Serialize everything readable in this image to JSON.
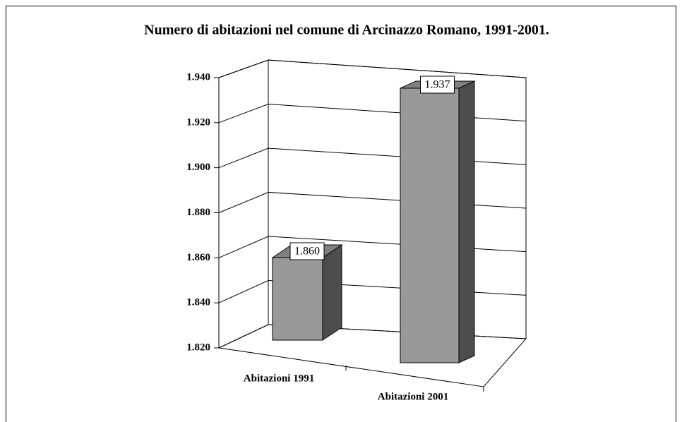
{
  "chart_data": {
    "type": "bar",
    "title": "Numero di abitazioni nel comune di Arcinazzo Romano, 1991-2001.",
    "categories": [
      "Abitazioni 1991",
      "Abitazioni 2001"
    ],
    "values": [
      1860,
      1937
    ],
    "value_labels": [
      "1.860",
      "1.937"
    ],
    "color": "#999999",
    "ylim": [
      1820,
      1940
    ],
    "yticks": [
      {
        "value": 1820,
        "label": "1.820"
      },
      {
        "value": 1840,
        "label": "1.840"
      },
      {
        "value": 1860,
        "label": "1.860"
      },
      {
        "value": 1880,
        "label": "1.880"
      },
      {
        "value": 1900,
        "label": "1.900"
      },
      {
        "value": 1920,
        "label": "1.920"
      },
      {
        "value": 1940,
        "label": "1.940"
      }
    ],
    "grid": true
  }
}
